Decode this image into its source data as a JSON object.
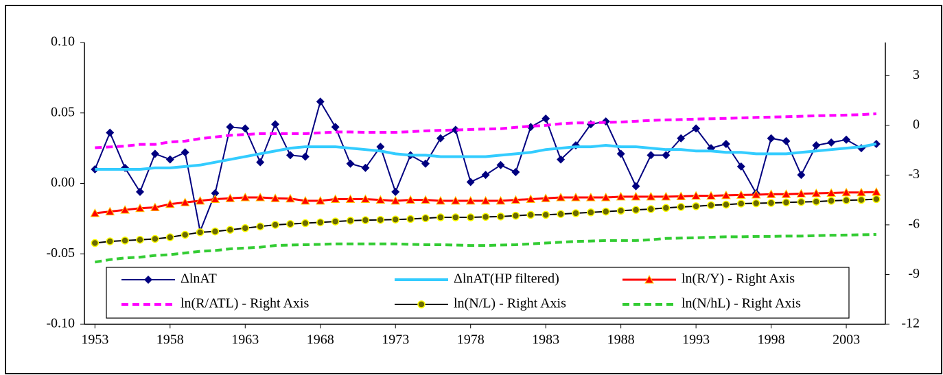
{
  "chart_data": {
    "type": "line",
    "x": [
      1953,
      1954,
      1955,
      1956,
      1957,
      1958,
      1959,
      1960,
      1961,
      1962,
      1963,
      1964,
      1965,
      1966,
      1967,
      1968,
      1969,
      1970,
      1971,
      1972,
      1973,
      1974,
      1975,
      1976,
      1977,
      1978,
      1979,
      1980,
      1981,
      1982,
      1983,
      1984,
      1985,
      1986,
      1987,
      1988,
      1989,
      1990,
      1991,
      1992,
      1993,
      1994,
      1995,
      1996,
      1997,
      1998,
      1999,
      2000,
      2001,
      2002,
      2003,
      2004,
      2005
    ],
    "xlim": [
      1952.3,
      2005.6
    ],
    "xticks": [
      1953,
      1958,
      1963,
      1968,
      1973,
      1978,
      1983,
      1988,
      1993,
      1998,
      2003
    ],
    "ylim": [
      -0.1,
      0.1
    ],
    "yticks": [
      {
        "value": -0.1,
        "label": "-0.10"
      },
      {
        "value": -0.05,
        "label": "-0.05"
      },
      {
        "value": 0,
        "label": "0.00"
      },
      {
        "value": 0.05,
        "label": "0.05"
      },
      {
        "value": 0.1,
        "label": "0.10"
      }
    ],
    "y2lim": [
      -12,
      5
    ],
    "y2ticks": [
      -12,
      -9,
      -6,
      -3,
      0,
      3
    ],
    "grid": false,
    "legend": "bottom",
    "series": [
      {
        "name": "ΔlnAT",
        "color": "#000080",
        "marker": "diamond",
        "marker_color": "#000080",
        "values": [
          0.01,
          0.036,
          0.011,
          -0.006,
          0.021,
          0.017,
          0.022,
          -0.034,
          -0.007,
          0.04,
          0.039,
          0.015,
          0.042,
          0.02,
          0.019,
          0.058,
          0.04,
          0.014,
          0.011,
          0.026,
          -0.006,
          0.02,
          0.014,
          0.032,
          0.038,
          0.001,
          0.006,
          0.013,
          0.008,
          0.04,
          0.046,
          0.017,
          0.027,
          0.042,
          0.044,
          0.021,
          -0.002,
          0.02,
          0.02,
          0.032,
          0.039,
          0.025,
          0.028,
          0.012,
          -0.007,
          0.032,
          0.03,
          0.006,
          0.027,
          0.029,
          0.031,
          0.025,
          0.028
        ]
      },
      {
        "name": "ΔlnAT(HP filtered)",
        "color": "#33ccff",
        "width": 4,
        "values": [
          0.01,
          0.01,
          0.01,
          0.01,
          0.011,
          0.011,
          0.012,
          0.013,
          0.015,
          0.017,
          0.019,
          0.021,
          0.023,
          0.025,
          0.026,
          0.026,
          0.026,
          0.025,
          0.024,
          0.023,
          0.021,
          0.02,
          0.02,
          0.019,
          0.019,
          0.019,
          0.019,
          0.02,
          0.021,
          0.022,
          0.024,
          0.025,
          0.026,
          0.026,
          0.027,
          0.026,
          0.026,
          0.025,
          0.024,
          0.024,
          0.023,
          0.023,
          0.022,
          0.022,
          0.021,
          0.021,
          0.021,
          0.022,
          0.023,
          0.024,
          0.025,
          0.026,
          0.028
        ]
      },
      {
        "name": "ln(R/Y) - Right Axis",
        "color": "#ff0000",
        "axis": "y2",
        "marker": "triangle",
        "marker_color": "#ff0000",
        "width": 3,
        "values": [
          -5.3,
          -5.2,
          -5.1,
          -5.0,
          -4.95,
          -4.75,
          -4.65,
          -4.55,
          -4.45,
          -4.4,
          -4.35,
          -4.35,
          -4.4,
          -4.42,
          -4.55,
          -4.55,
          -4.45,
          -4.45,
          -4.45,
          -4.5,
          -4.55,
          -4.5,
          -4.5,
          -4.55,
          -4.55,
          -4.55,
          -4.55,
          -4.55,
          -4.5,
          -4.45,
          -4.4,
          -4.35,
          -4.35,
          -4.35,
          -4.35,
          -4.3,
          -4.3,
          -4.3,
          -4.3,
          -4.28,
          -4.25,
          -4.25,
          -4.22,
          -4.2,
          -4.18,
          -4.15,
          -4.15,
          -4.12,
          -4.1,
          -4.08,
          -4.05,
          -4.05,
          -4.02
        ]
      },
      {
        "name": "ln(R/ATL) - Right Axis",
        "color": "#ff00ff",
        "axis": "y2",
        "dash": true,
        "width": 4,
        "values": [
          -1.35,
          -1.3,
          -1.25,
          -1.15,
          -1.15,
          -1.0,
          -0.95,
          -0.8,
          -0.7,
          -0.6,
          -0.55,
          -0.5,
          -0.5,
          -0.5,
          -0.5,
          -0.45,
          -0.4,
          -0.4,
          -0.42,
          -0.42,
          -0.42,
          -0.38,
          -0.33,
          -0.3,
          -0.28,
          -0.25,
          -0.22,
          -0.2,
          -0.12,
          -0.05,
          0.0,
          0.1,
          0.15,
          0.15,
          0.18,
          0.2,
          0.25,
          0.3,
          0.33,
          0.35,
          0.38,
          0.4,
          0.42,
          0.45,
          0.48,
          0.5,
          0.52,
          0.55,
          0.58,
          0.6,
          0.62,
          0.65,
          0.7
        ]
      },
      {
        "name": "ln(N/L) - Right Axis",
        "color": "#000000",
        "axis": "y2",
        "marker": "circle",
        "marker_color": "#6b6b00",
        "values": [
          -7.1,
          -7.0,
          -6.95,
          -6.9,
          -6.85,
          -6.75,
          -6.6,
          -6.45,
          -6.4,
          -6.3,
          -6.2,
          -6.1,
          -6.0,
          -5.95,
          -5.9,
          -5.85,
          -5.8,
          -5.75,
          -5.72,
          -5.7,
          -5.68,
          -5.65,
          -5.6,
          -5.55,
          -5.55,
          -5.55,
          -5.52,
          -5.5,
          -5.45,
          -5.4,
          -5.4,
          -5.35,
          -5.3,
          -5.25,
          -5.2,
          -5.15,
          -5.1,
          -5.05,
          -4.98,
          -4.92,
          -4.88,
          -4.82,
          -4.78,
          -4.72,
          -4.7,
          -4.68,
          -4.65,
          -4.62,
          -4.6,
          -4.55,
          -4.52,
          -4.5,
          -4.45
        ]
      },
      {
        "name": "ln(N/hL) - Right Axis",
        "color": "#33cc33",
        "axis": "y2",
        "dash": true,
        "width": 4,
        "values": [
          -8.25,
          -8.1,
          -8.0,
          -7.95,
          -7.85,
          -7.8,
          -7.7,
          -7.6,
          -7.55,
          -7.45,
          -7.4,
          -7.35,
          -7.25,
          -7.22,
          -7.2,
          -7.18,
          -7.15,
          -7.15,
          -7.15,
          -7.15,
          -7.15,
          -7.18,
          -7.2,
          -7.2,
          -7.22,
          -7.25,
          -7.25,
          -7.22,
          -7.2,
          -7.15,
          -7.1,
          -7.05,
          -7.0,
          -6.98,
          -6.95,
          -6.95,
          -6.95,
          -6.9,
          -6.82,
          -6.8,
          -6.78,
          -6.75,
          -6.72,
          -6.72,
          -6.7,
          -6.7,
          -6.68,
          -6.68,
          -6.65,
          -6.63,
          -6.62,
          -6.6,
          -6.58
        ]
      }
    ]
  }
}
